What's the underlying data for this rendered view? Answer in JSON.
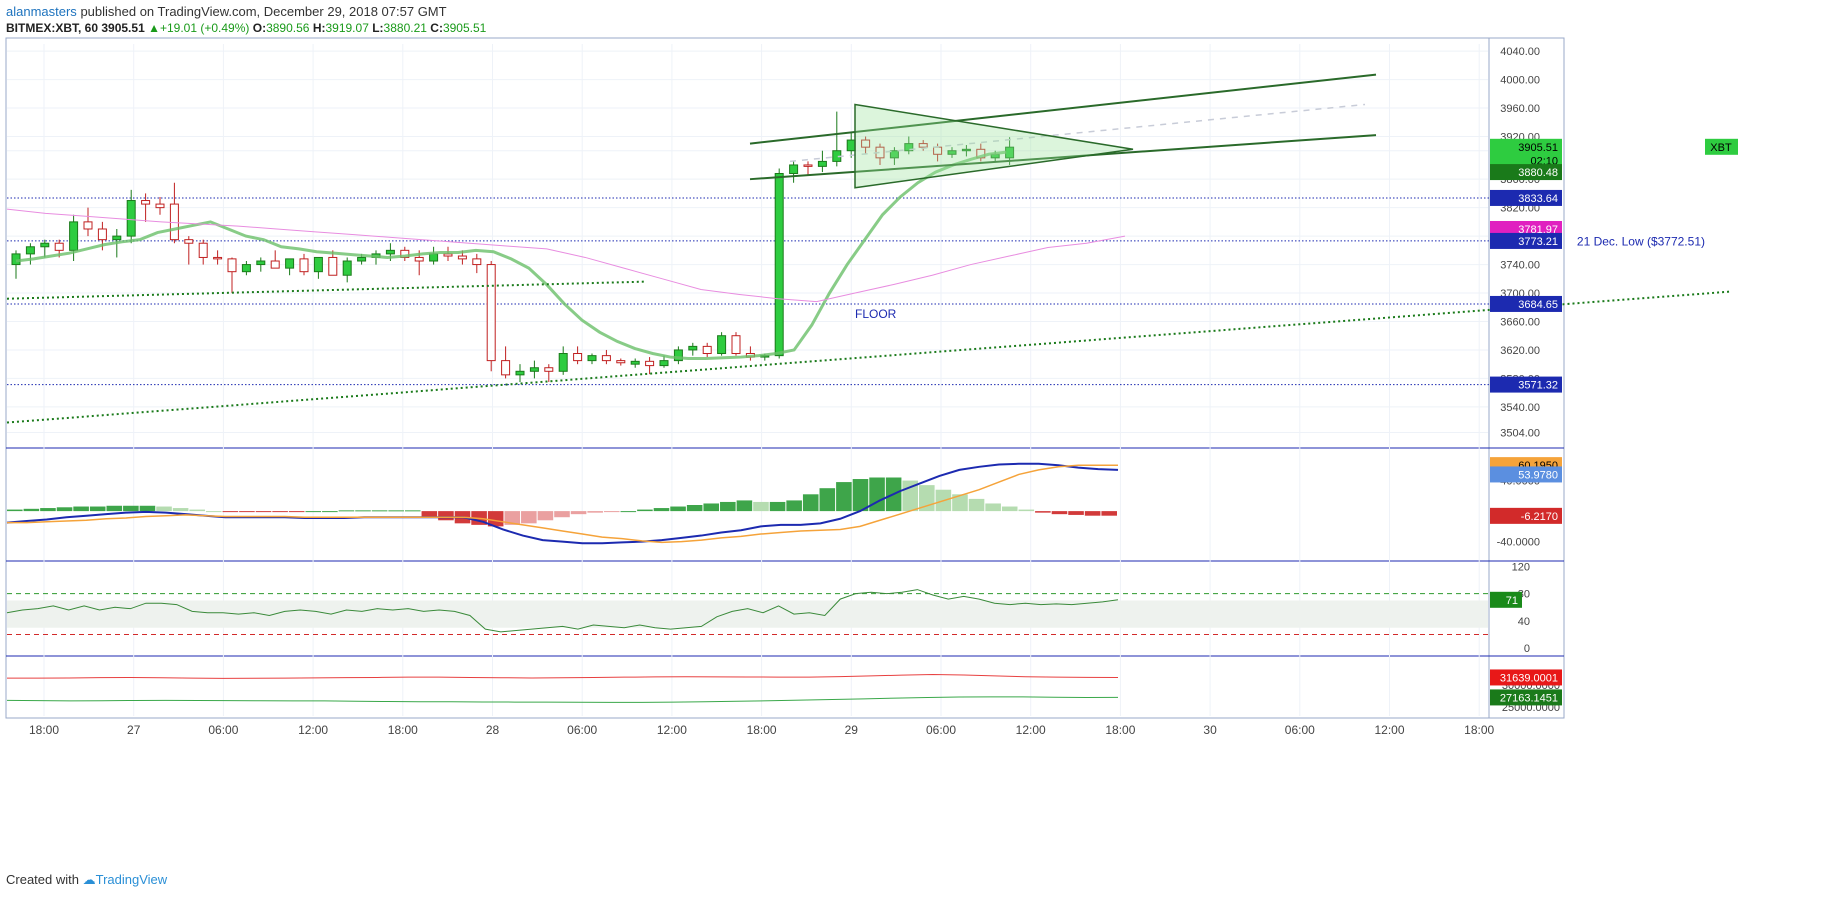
{
  "header": {
    "author": "alanmasters",
    "published": "published on TradingView.com, December 29, 2018 07:57 GMT",
    "symbol": "BITMEX:XBT, 60",
    "last": "3905.51",
    "change": "+19.01 (+0.49%)",
    "open_label": "O:",
    "open": "3890.56",
    "high_label": "H:",
    "high": "3919.07",
    "low_label": "L:",
    "low": "3880.21",
    "close_label": "C:",
    "close": "3905.51"
  },
  "footer": {
    "created_with": "Created with",
    "brand": "TradingView"
  },
  "colors": {
    "up": "#2ecc40",
    "down": "#e84040",
    "ema": "#6abf69",
    "ma": "#e88de0",
    "level": "#1c2ab0",
    "trend": "#1a7a1a",
    "axis_blue": "#1c2ab0",
    "macd": "#1c2ab0",
    "signal": "#f5a33a",
    "rsi": "#3a8a3a"
  },
  "chart_data": [
    {
      "type": "candlestick",
      "title": "BITMEX:XBT, 60",
      "ylim": [
        3485,
        4050
      ],
      "y_ticks": [
        3504,
        3540,
        3580,
        3620,
        3660,
        3700,
        3740,
        3780,
        3820,
        3860,
        3900,
        3920,
        3960,
        4000,
        4040
      ],
      "x_tick_labels": [
        "18:00",
        "27",
        "06:00",
        "12:00",
        "18:00",
        "28",
        "06:00",
        "12:00",
        "18:00",
        "29",
        "06:00",
        "12:00",
        "18:00",
        "30",
        "06:00",
        "12:00",
        "18:00"
      ],
      "candles_ohlc": [
        [
          3740,
          3760,
          3720,
          3755
        ],
        [
          3755,
          3770,
          3740,
          3765
        ],
        [
          3765,
          3775,
          3750,
          3770
        ],
        [
          3770,
          3775,
          3750,
          3760
        ],
        [
          3760,
          3810,
          3745,
          3800
        ],
        [
          3800,
          3820,
          3780,
          3790
        ],
        [
          3790,
          3800,
          3760,
          3775
        ],
        [
          3775,
          3790,
          3750,
          3780
        ],
        [
          3780,
          3845,
          3770,
          3830
        ],
        [
          3830,
          3840,
          3800,
          3825
        ],
        [
          3825,
          3835,
          3810,
          3820
        ],
        [
          3825,
          3855,
          3770,
          3775
        ],
        [
          3775,
          3780,
          3740,
          3770
        ],
        [
          3770,
          3775,
          3740,
          3750
        ],
        [
          3750,
          3760,
          3740,
          3748
        ],
        [
          3748,
          3750,
          3700,
          3730
        ],
        [
          3730,
          3745,
          3725,
          3740
        ],
        [
          3740,
          3750,
          3730,
          3745
        ],
        [
          3745,
          3760,
          3735,
          3735
        ],
        [
          3735,
          3745,
          3725,
          3748
        ],
        [
          3748,
          3755,
          3725,
          3730
        ],
        [
          3730,
          3740,
          3720,
          3750
        ],
        [
          3750,
          3760,
          3725,
          3725
        ],
        [
          3725,
          3750,
          3715,
          3745
        ],
        [
          3745,
          3755,
          3740,
          3750
        ],
        [
          3750,
          3760,
          3740,
          3755
        ],
        [
          3755,
          3770,
          3745,
          3760
        ],
        [
          3760,
          3765,
          3745,
          3750
        ],
        [
          3750,
          3760,
          3725,
          3745
        ],
        [
          3745,
          3765,
          3740,
          3755
        ],
        [
          3755,
          3765,
          3745,
          3752
        ],
        [
          3752,
          3760,
          3740,
          3748
        ],
        [
          3748,
          3755,
          3728,
          3740
        ],
        [
          3740,
          3745,
          3590,
          3605
        ],
        [
          3605,
          3625,
          3580,
          3585
        ],
        [
          3585,
          3600,
          3575,
          3590
        ],
        [
          3590,
          3605,
          3580,
          3595
        ],
        [
          3595,
          3600,
          3575,
          3590
        ],
        [
          3590,
          3625,
          3585,
          3615
        ],
        [
          3615,
          3625,
          3600,
          3605
        ],
        [
          3605,
          3615,
          3600,
          3612
        ],
        [
          3612,
          3620,
          3600,
          3605
        ],
        [
          3605,
          3608,
          3598,
          3602
        ],
        [
          3600,
          3608,
          3595,
          3604
        ],
        [
          3604,
          3610,
          3586,
          3598
        ],
        [
          3598,
          3612,
          3595,
          3605
        ],
        [
          3605,
          3625,
          3600,
          3620
        ],
        [
          3620,
          3630,
          3612,
          3625
        ],
        [
          3625,
          3630,
          3610,
          3615
        ],
        [
          3615,
          3645,
          3612,
          3640
        ],
        [
          3640,
          3645,
          3612,
          3615
        ],
        [
          3615,
          3625,
          3605,
          3610
        ],
        [
          3610,
          3615,
          3605,
          3612
        ],
        [
          3612,
          3875,
          3608,
          3868
        ],
        [
          3868,
          3885,
          3855,
          3880
        ],
        [
          3880,
          3885,
          3865,
          3878
        ],
        [
          3878,
          3900,
          3870,
          3885
        ],
        [
          3885,
          3955,
          3878,
          3900
        ],
        [
          3900,
          3925,
          3890,
          3915
        ],
        [
          3915,
          3920,
          3895,
          3905
        ],
        [
          3905,
          3910,
          3880,
          3890
        ],
        [
          3890,
          3905,
          3880,
          3900
        ],
        [
          3900,
          3920,
          3895,
          3910
        ],
        [
          3910,
          3915,
          3900,
          3905
        ],
        [
          3905,
          3910,
          3885,
          3895
        ],
        [
          3895,
          3905,
          3890,
          3900
        ],
        [
          3900,
          3908,
          3892,
          3902
        ],
        [
          3902,
          3910,
          3885,
          3890
        ],
        [
          3890,
          3900,
          3885,
          3895
        ],
        [
          3890,
          3919,
          3880,
          3905
        ]
      ],
      "ema_values": [
        3745,
        3748,
        3752,
        3756,
        3762,
        3768,
        3772,
        3775,
        3785,
        3790,
        3795,
        3800,
        3790,
        3780,
        3775,
        3765,
        3762,
        3758,
        3756,
        3754,
        3752,
        3750,
        3752,
        3755,
        3757,
        3757,
        3760,
        3758,
        3748,
        3735,
        3712,
        3685,
        3662,
        3645,
        3632,
        3622,
        3615,
        3610,
        3608,
        3608,
        3609,
        3610,
        3612,
        3615,
        3620,
        3655,
        3700,
        3740,
        3775,
        3810,
        3835,
        3855,
        3870,
        3880,
        3888,
        3895,
        3898
      ],
      "ma_values": [
        3818,
        3812,
        3808,
        3804,
        3800,
        3797,
        3794,
        3790,
        3786,
        3782,
        3778,
        3774,
        3770,
        3766,
        3762,
        3750,
        3735,
        3720,
        3705,
        3698,
        3692,
        3688,
        3700,
        3712,
        3725,
        3740,
        3752,
        3764,
        3770,
        3780
      ],
      "price_labels": [
        "3905.51",
        "02:10",
        "3880.48",
        "3833.64",
        "3781.97",
        "3773.21",
        "3684.65",
        "3571.32"
      ],
      "symbol_tag": "XBT",
      "annotations": [
        "21 Dec. Low ($3772.51)",
        "FLOOR"
      ],
      "horizontal_levels": [
        3833.64,
        3773.21,
        3684.65,
        3571.32
      ]
    },
    {
      "type": "macd",
      "ylim": [
        -64,
        80
      ],
      "y_ticks": [
        40,
        -40
      ],
      "macd_line": [
        -15,
        -13,
        -11,
        -8,
        -6,
        -4,
        -2,
        -1,
        -2,
        -4,
        -6,
        -8,
        -8,
        -8,
        -8,
        -9,
        -9,
        -9,
        -8,
        -8,
        -8,
        -8,
        -8,
        -8,
        -14,
        -24,
        -32,
        -38,
        -40,
        -42,
        -42,
        -41,
        -40,
        -38,
        -35,
        -32,
        -28,
        -25,
        -20,
        -18,
        -18,
        -16,
        -10,
        0,
        14,
        26,
        36,
        46,
        54,
        58,
        61,
        62,
        62,
        60,
        57,
        55,
        54
      ],
      "signal_line": [
        -15,
        -15,
        -14,
        -13,
        -12,
        -10,
        -9,
        -7,
        -6,
        -5,
        -6,
        -7,
        -7,
        -7,
        -7,
        -8,
        -8,
        -8,
        -8,
        -8,
        -8,
        -8,
        -8,
        -8,
        -10,
        -14,
        -18,
        -22,
        -26,
        -30,
        -34,
        -36,
        -39,
        -41,
        -40,
        -38,
        -35,
        -33,
        -30,
        -28,
        -26,
        -25,
        -24,
        -20,
        -12,
        -4,
        4,
        12,
        20,
        28,
        38,
        48,
        54,
        58,
        60,
        60,
        60
      ],
      "histogram": [
        2,
        3,
        4,
        5,
        6,
        6,
        7,
        7,
        7,
        6,
        4,
        2,
        0,
        -1,
        -1,
        -1,
        -1,
        -1,
        0,
        0,
        1,
        1,
        1,
        1,
        1,
        -8,
        -12,
        -16,
        -18,
        -20,
        -18,
        -16,
        -12,
        -8,
        -4,
        -2,
        -1,
        0,
        2,
        4,
        6,
        8,
        10,
        12,
        14,
        12,
        12,
        14,
        22,
        30,
        38,
        42,
        44,
        44,
        40,
        34,
        28,
        22,
        16,
        10,
        6,
        2,
        -2,
        -4,
        -5,
        -6,
        -6
      ],
      "value_labels": [
        "60.1950",
        "53.9780",
        "-6.2170"
      ]
    },
    {
      "type": "rsi",
      "ylim": [
        -10,
        125
      ],
      "y_ticks": [
        120,
        80,
        40,
        0
      ],
      "upper": 70,
      "lower": 30,
      "values": [
        52,
        56,
        58,
        62,
        56,
        62,
        56,
        60,
        58,
        66,
        66,
        64,
        54,
        52,
        52,
        50,
        52,
        48,
        54,
        56,
        54,
        50,
        56,
        54,
        58,
        56,
        58,
        54,
        56,
        54,
        48,
        28,
        24,
        26,
        28,
        30,
        32,
        28,
        34,
        32,
        30,
        34,
        30,
        28,
        30,
        32,
        46,
        54,
        58,
        52,
        62,
        50,
        52,
        48,
        72,
        80,
        82,
        80,
        82,
        86,
        78,
        72,
        76,
        72,
        66,
        64,
        66,
        64,
        65,
        64,
        66,
        68,
        71
      ],
      "value_label": "71"
    },
    {
      "type": "line",
      "ylim": [
        23000,
        36000
      ],
      "y_ticks": [
        30000,
        25000
      ],
      "series": [
        {
          "name": "",
          "values": [
            31500,
            31480,
            31520,
            31600,
            31640,
            31560,
            31480,
            31420,
            31460,
            31500,
            31540,
            31600,
            31640,
            31700,
            31720,
            31640,
            31580,
            31520,
            31580,
            31640,
            31700,
            31760,
            31800,
            31780,
            31740,
            31720,
            31700,
            31820,
            32000,
            32150,
            32300,
            32200,
            32000,
            31800,
            31700,
            31650,
            31639
          ]
        },
        {
          "name": "",
          "values": [
            26500,
            26460,
            26400,
            26420,
            26480,
            26500,
            26480,
            26460,
            26420,
            26400,
            26380,
            26300,
            26250,
            26200,
            26180,
            26150,
            26120,
            26100,
            26080,
            26060,
            26040,
            26100,
            26200,
            26300,
            26420,
            26560,
            26700,
            26850,
            27000,
            27150,
            27250,
            27300,
            27300,
            27200,
            27150,
            27163
          ]
        }
      ],
      "value_labels": [
        "31639.0001",
        "27163.1451"
      ]
    }
  ]
}
